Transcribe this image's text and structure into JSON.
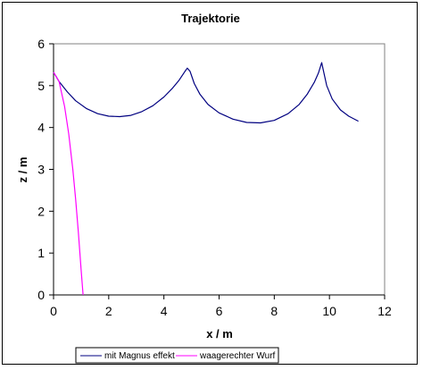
{
  "chart_data": {
    "type": "line",
    "title": "Trajektorie",
    "xlabel": "x / m",
    "ylabel": "z / m",
    "xlim": [
      0,
      12
    ],
    "ylim": [
      0,
      6
    ],
    "xticks": [
      "0",
      "2",
      "4",
      "6",
      "8",
      "10",
      "12"
    ],
    "yticks": [
      "0",
      "1",
      "2",
      "3",
      "4",
      "5",
      "6"
    ],
    "grid": false,
    "legend_position": "bottom",
    "series": [
      {
        "name": "mit Magnus effekt",
        "color": "#000080",
        "x": [
          0,
          0.2,
          0.5,
          0.8,
          1.2,
          1.6,
          2.0,
          2.4,
          2.8,
          3.2,
          3.6,
          4.0,
          4.3,
          4.55,
          4.75,
          4.85,
          4.95,
          5.1,
          5.3,
          5.6,
          6.0,
          6.5,
          7.0,
          7.5,
          8.0,
          8.5,
          8.9,
          9.2,
          9.45,
          9.6,
          9.72,
          9.8,
          9.9,
          10.1,
          10.4,
          10.7,
          11.05
        ],
        "y": [
          5.32,
          5.1,
          4.85,
          4.64,
          4.45,
          4.33,
          4.27,
          4.26,
          4.29,
          4.38,
          4.52,
          4.73,
          4.93,
          5.13,
          5.33,
          5.42,
          5.34,
          5.05,
          4.8,
          4.55,
          4.35,
          4.2,
          4.12,
          4.11,
          4.17,
          4.33,
          4.55,
          4.8,
          5.08,
          5.3,
          5.55,
          5.3,
          5.0,
          4.68,
          4.42,
          4.27,
          4.15
        ]
      },
      {
        "name": "waagerechter Wurf",
        "color": "#ff00ff",
        "x": [
          0,
          0.2,
          0.4,
          0.55,
          0.7,
          0.8,
          0.9,
          1.0,
          1.07
        ],
        "y": [
          5.32,
          5.1,
          4.5,
          3.85,
          3.0,
          2.3,
          1.5,
          0.6,
          0
        ]
      }
    ]
  }
}
